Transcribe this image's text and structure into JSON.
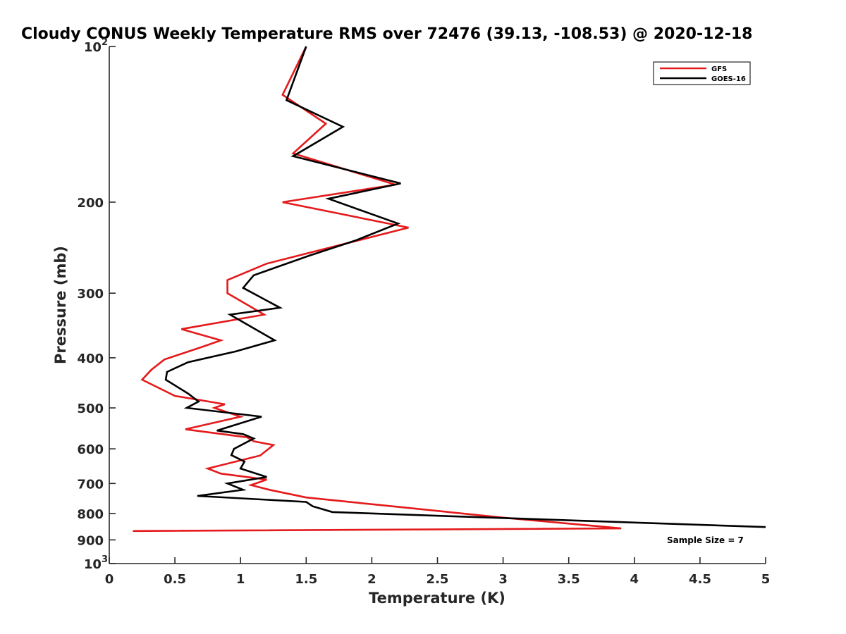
{
  "chart_data": {
    "type": "line",
    "title": "Cloudy CONUS Weekly Temperature RMS over 72476 (39.13, -108.53) @ 2020-12-18",
    "xlabel": "Temperature (K)",
    "ylabel": "Pressure (mb)",
    "xlim": [
      0,
      5
    ],
    "ylim": [
      100,
      1000
    ],
    "y_scale": "log",
    "y_reversed": true,
    "x_ticks": [
      "0",
      "0.5",
      "1",
      "1.5",
      "2",
      "2.5",
      "3",
      "3.5",
      "4",
      "4.5",
      "5"
    ],
    "y_ticks": [
      {
        "value": 100,
        "label": "10",
        "exp": "2"
      },
      {
        "value": 200,
        "label": "200"
      },
      {
        "value": 300,
        "label": "300"
      },
      {
        "value": 400,
        "label": "400"
      },
      {
        "value": 500,
        "label": "500"
      },
      {
        "value": 600,
        "label": "600"
      },
      {
        "value": 700,
        "label": "700"
      },
      {
        "value": 800,
        "label": "800"
      },
      {
        "value": 900,
        "label": "900"
      },
      {
        "value": 1000,
        "label": "10",
        "exp": "3"
      }
    ],
    "legend_position": "top-right",
    "grid": false,
    "annotation": "Sample Size = 7",
    "series": [
      {
        "name": "GFS",
        "color": "#e41a1c",
        "x": [
          1.5,
          1.32,
          1.65,
          1.4,
          2.18,
          1.32,
          2.28,
          1.2,
          0.9,
          0.9,
          1.18,
          0.55,
          0.85,
          0.72,
          0.42,
          0.32,
          0.25,
          0.5,
          0.88,
          0.8,
          1.0,
          0.58,
          1.05,
          1.1,
          1.25,
          1.15,
          0.75,
          0.85,
          1.2,
          1.08,
          1.22,
          1.5,
          2.05,
          3.0,
          3.9,
          0.18
        ],
        "y": [
          100,
          124,
          141,
          161,
          185,
          200,
          224,
          263,
          283,
          300,
          330,
          352,
          370,
          380,
          403,
          422,
          441,
          474,
          492,
          500,
          520,
          550,
          570,
          580,
          590,
          618,
          655,
          670,
          688,
          705,
          720,
          745,
          770,
          815,
          855,
          865
        ]
      },
      {
        "name": "GOES-16",
        "color": "#000000",
        "x": [
          1.5,
          1.35,
          1.78,
          1.4,
          2.22,
          1.67,
          2.2,
          1.88,
          1.52,
          1.1,
          1.02,
          1.3,
          0.92,
          1.26,
          0.96,
          0.6,
          0.44,
          0.43,
          0.6,
          0.68,
          0.59,
          1.16,
          0.82,
          1.02,
          1.1,
          0.95,
          0.93,
          1.03,
          1.0,
          1.2,
          0.9,
          1.02,
          0.67,
          1.5,
          1.55,
          1.7,
          2.6,
          5.0
        ],
        "y": [
          100,
          127,
          143,
          163,
          184,
          197,
          220,
          237,
          254,
          277,
          293,
          320,
          330,
          370,
          389,
          408,
          426,
          441,
          469,
          486,
          500,
          520,
          553,
          562,
          573,
          600,
          617,
          635,
          655,
          680,
          700,
          720,
          740,
          760,
          775,
          795,
          810,
          850
        ]
      }
    ]
  }
}
